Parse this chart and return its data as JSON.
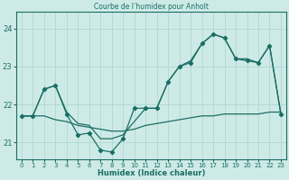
{
  "title": "Courbe de l’humidex pour Anholt",
  "xlabel": "Humidex (Indice chaleur)",
  "bg_color": "#ceeae7",
  "grid_color": "#aad4d0",
  "line_color": "#1a6e64",
  "xlim": [
    -0.5,
    23.5
  ],
  "ylim": [
    20.55,
    24.45
  ],
  "yticks": [
    21,
    22,
    23,
    24
  ],
  "xticks": [
    0,
    1,
    2,
    3,
    4,
    5,
    6,
    7,
    8,
    9,
    10,
    11,
    12,
    13,
    14,
    15,
    16,
    17,
    18,
    19,
    20,
    21,
    22,
    23
  ],
  "line_bottom_x": [
    0,
    1,
    2,
    3,
    4,
    5,
    6,
    7,
    8,
    9,
    10,
    11,
    12,
    13,
    14,
    15,
    16,
    17,
    18,
    19,
    20,
    21,
    22,
    23
  ],
  "line_bottom_y": [
    21.7,
    21.7,
    21.7,
    21.6,
    21.55,
    21.45,
    21.4,
    21.35,
    21.3,
    21.3,
    21.35,
    21.45,
    21.5,
    21.55,
    21.6,
    21.65,
    21.7,
    21.7,
    21.75,
    21.75,
    21.75,
    21.75,
    21.8,
    21.8
  ],
  "line_top_x": [
    0,
    1,
    2,
    3,
    4,
    5,
    6,
    7,
    8,
    9,
    10,
    11,
    12,
    13,
    14,
    15,
    16,
    17,
    18,
    19,
    20,
    21,
    22,
    23
  ],
  "line_top_y": [
    21.7,
    21.7,
    22.4,
    22.5,
    21.8,
    21.5,
    21.45,
    21.1,
    21.1,
    21.2,
    21.55,
    21.9,
    21.9,
    22.6,
    23.0,
    23.15,
    23.6,
    23.85,
    23.75,
    23.2,
    23.2,
    23.1,
    23.55,
    21.75
  ],
  "line_jagged_x": [
    0,
    1,
    2,
    3,
    4,
    5,
    6,
    7,
    8,
    9,
    10,
    11,
    12,
    13,
    14,
    15,
    16,
    17,
    18,
    19,
    20,
    21,
    22,
    23
  ],
  "line_jagged_y": [
    21.7,
    21.7,
    22.4,
    22.5,
    21.75,
    21.2,
    21.25,
    20.8,
    20.75,
    21.1,
    21.9,
    21.9,
    21.9,
    22.6,
    23.0,
    23.1,
    23.6,
    23.85,
    23.75,
    23.2,
    23.15,
    23.1,
    23.55,
    21.75
  ]
}
